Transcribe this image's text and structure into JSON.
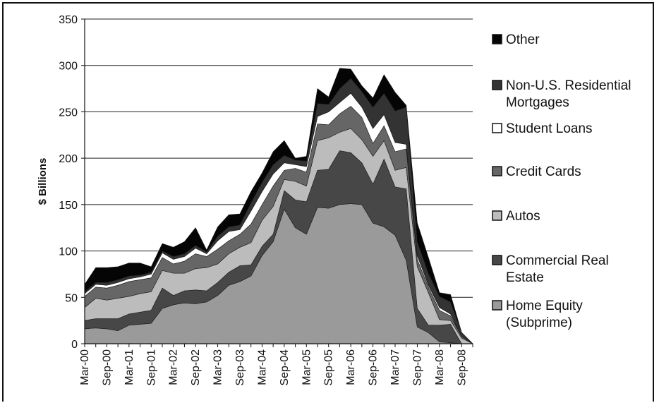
{
  "chart_data": {
    "type": "area",
    "stacked": true,
    "ylabel": "$ Billions",
    "xlabel": "",
    "ylim": [
      0,
      350
    ],
    "yticks": [
      0,
      50,
      100,
      150,
      200,
      250,
      300,
      350
    ],
    "grid": "horizontal",
    "legend_position": "right",
    "x": [
      "Mar-00",
      "Jun-00",
      "Sep-00",
      "Dec-00",
      "Mar-01",
      "Jun-01",
      "Sep-01",
      "Dec-01",
      "Mar-02",
      "Jun-02",
      "Sep-02",
      "Dec-02",
      "Mar-03",
      "Jun-03",
      "Sep-03",
      "Dec-03",
      "Mar-04",
      "Jun-04",
      "Sep-04",
      "Dec-04",
      "Mar-05",
      "Jun-05",
      "Sep-05",
      "Dec-05",
      "Mar-06",
      "Jun-06",
      "Sep-06",
      "Dec-06",
      "Mar-07",
      "Jun-07",
      "Sep-07",
      "Dec-07",
      "Mar-08",
      "Jun-08",
      "Sep-08",
      "Dec-08"
    ],
    "xtick_labels": [
      "Mar-00",
      "Sep-00",
      "Mar-01",
      "Sep-01",
      "Mar-02",
      "Sep-02",
      "Mar-03",
      "Sep-03",
      "Mar-04",
      "Sep-04",
      "Mar-05",
      "Sep-05",
      "Mar-06",
      "Sep-06",
      "Mar-07",
      "Sep-07",
      "Mar-08",
      "Sep-08"
    ],
    "series": [
      {
        "name": "Home Equity (Subprime)",
        "color": "#9a9a9a",
        "values": [
          16,
          17,
          16,
          14,
          20,
          21,
          22,
          38,
          42,
          44,
          43,
          45,
          52,
          63,
          67,
          73,
          95,
          110,
          145,
          125,
          118,
          147,
          146,
          150,
          151,
          150,
          130,
          126,
          117,
          90,
          18,
          12,
          2,
          1,
          0,
          0
        ]
      },
      {
        "name": "Commercial Real Estate",
        "color": "#474747",
        "values": [
          9,
          10,
          11,
          13,
          12,
          13,
          14,
          22,
          10,
          13,
          15,
          12,
          14,
          14,
          17,
          12,
          10,
          8,
          20,
          30,
          35,
          40,
          42,
          58,
          55,
          45,
          42,
          73,
          52,
          77,
          20,
          8,
          18,
          20,
          0,
          0
        ]
      },
      {
        "name": "Autos",
        "color": "#bcbcbc",
        "values": [
          14,
          22,
          20,
          22,
          19,
          20,
          20,
          19,
          24,
          19,
          23,
          25,
          20,
          20,
          20,
          24,
          28,
          30,
          12,
          20,
          17,
          32,
          34,
          20,
          26,
          25,
          30,
          20,
          18,
          23,
          45,
          35,
          6,
          4,
          6,
          0
        ]
      },
      {
        "name": "Credit Cards",
        "color": "#666666",
        "values": [
          12,
          12,
          13,
          14,
          16,
          15,
          15,
          14,
          10,
          13,
          16,
          12,
          16,
          14,
          14,
          20,
          17,
          22,
          10,
          14,
          15,
          18,
          14,
          20,
          24,
          24,
          14,
          16,
          20,
          20,
          8,
          6,
          10,
          5,
          2,
          0
        ]
      },
      {
        "name": "Student Loans",
        "color": "#ffffff",
        "values": [
          3,
          3,
          3,
          3,
          3,
          3,
          4,
          5,
          5,
          5,
          6,
          3,
          9,
          10,
          5,
          14,
          14,
          13,
          8,
          4,
          6,
          8,
          14,
          12,
          14,
          11,
          16,
          12,
          10,
          5,
          4,
          2,
          3,
          2,
          0,
          0
        ]
      },
      {
        "name": "Non-U.S. Residential Mortgages",
        "color": "#333333",
        "values": [
          2,
          2,
          3,
          3,
          3,
          2,
          2,
          2,
          3,
          3,
          3,
          2,
          5,
          5,
          5,
          9,
          10,
          10,
          8,
          5,
          6,
          14,
          8,
          15,
          16,
          17,
          23,
          23,
          34,
          40,
          15,
          13,
          12,
          13,
          4,
          0
        ]
      },
      {
        "name": "Other",
        "color": "#050505",
        "values": [
          8,
          16,
          16,
          14,
          14,
          13,
          6,
          8,
          10,
          13,
          19,
          2,
          10,
          13,
          12,
          12,
          10,
          14,
          16,
          2,
          5,
          16,
          8,
          22,
          10,
          6,
          10,
          20,
          20,
          2,
          20,
          17,
          4,
          8,
          0,
          0
        ]
      }
    ]
  }
}
